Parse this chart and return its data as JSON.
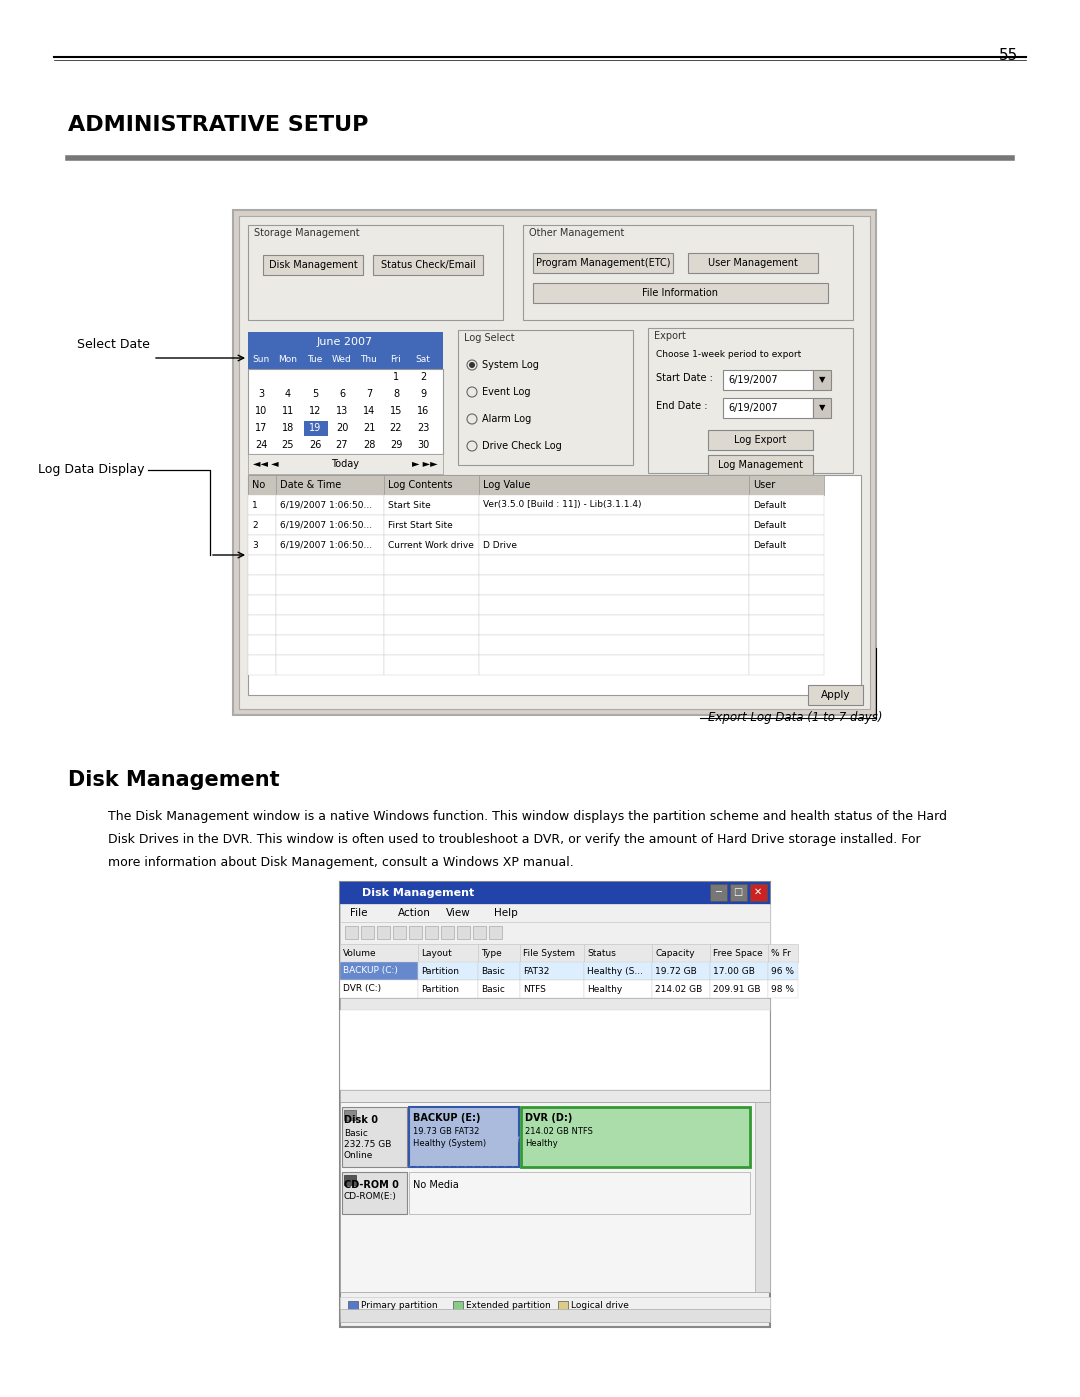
{
  "page_number": "55",
  "title": "ADMINISTRATIVE SETUP",
  "section_title": "Disk Management",
  "body_line1": "The Disk Management window is a native Windows function. This window displays the partition scheme and health status of the Hard",
  "body_line2": "Disk Drives in the DVR. This window is often used to troubleshoot a DVR, or verify the amount of Hard Drive storage installed. For",
  "body_line3": "more information about Disk Management, consult a Windows XP manual.",
  "label_select_date": "Select Date",
  "label_log_data_display": "Log Data Display",
  "label_export_log": "Export Log Data (1 to 7 days)",
  "bg_color": "#ffffff",
  "ui1_bg": "#d6d0c8",
  "ui1_inner_bg": "#e8e4dc",
  "cal_blue": "#4169b8",
  "cal_white": "#ffffff",
  "btn_bg": "#ddd8d0",
  "tbl_hdr_bg": "#c8c4bc",
  "dm_blue": "#3355bb",
  "dm_titlebar": "#2244aa",
  "dm_green_border": "#339933",
  "dm_green_fill": "#aaddaa",
  "dm_blue_fill": "#aabbdd",
  "dm_gray_fill": "#dddddd",
  "dm_legend_blue": "#5577cc",
  "dm_legend_green": "#88cc88",
  "dm_legend_tan": "#ddcc88"
}
